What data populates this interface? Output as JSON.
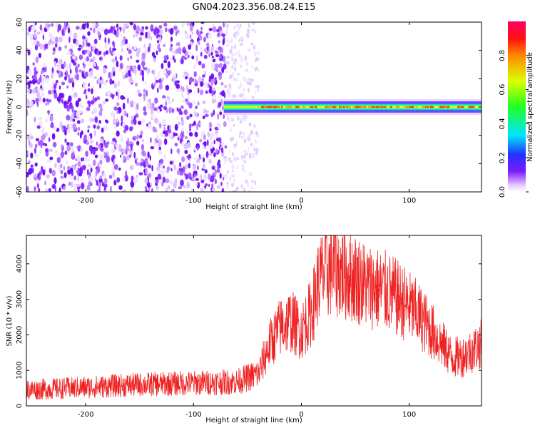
{
  "title": "GN04.2023.356.08.24.E15",
  "colorbar": {
    "label": "Normalized spectral amplitude",
    "ticks": [
      "0.0",
      "0.2",
      "0.4",
      "0.6",
      "0.8"
    ],
    "range": [
      0,
      1
    ]
  },
  "chart_data": [
    {
      "type": "heatmap",
      "xlabel": "Height of straight line (km)",
      "ylabel": "Frequency (Hz)",
      "xlim": [
        -255,
        167
      ],
      "ylim": [
        -60,
        60
      ],
      "xticks": [
        "-200",
        "-100",
        "0",
        "100"
      ],
      "yticks": [
        "-60",
        "-40",
        "-20",
        "0",
        "20",
        "40",
        "60"
      ],
      "regions": [
        {
          "x_range": [
            -255,
            -70
          ],
          "y_range": [
            -60,
            60
          ],
          "amplitude": "scattered 0.0-0.15"
        },
        {
          "x_range": [
            -70,
            -40
          ],
          "y_range": [
            -60,
            60
          ],
          "amplitude": "sparse 0.0-0.05"
        },
        {
          "x_range": [
            -72,
            167
          ],
          "y_range": [
            -3,
            3
          ],
          "amplitude": "0.3-1.0 (narrow band at 0 Hz)"
        }
      ]
    },
    {
      "type": "line",
      "xlabel": "Height of straight line (km)",
      "ylabel": "SNR (10 * v/v)",
      "xlim": [
        -255,
        167
      ],
      "ylim": [
        0,
        4800
      ],
      "xticks": [
        "-200",
        "-100",
        "0",
        "100"
      ],
      "yticks": [
        "0",
        "1000",
        "2000",
        "3000",
        "4000"
      ],
      "color": "#ee2222",
      "series": [
        {
          "x": [
            -255,
            -200,
            -150,
            -100,
            -60,
            -40,
            -30,
            -20,
            -10,
            0,
            10,
            15,
            20,
            30,
            40,
            50,
            60,
            70,
            80,
            90,
            100,
            110,
            120,
            130,
            140,
            150,
            160,
            167
          ],
          "y": [
            450,
            520,
            600,
            640,
            680,
            900,
            1700,
            2200,
            2400,
            2100,
            2700,
            3400,
            3700,
            3900,
            3700,
            3600,
            3400,
            3300,
            3200,
            3000,
            2800,
            2500,
            2150,
            1750,
            1350,
            1400,
            1600,
            1750
          ],
          "noise_band": [
            -400,
            700
          ]
        }
      ]
    }
  ]
}
